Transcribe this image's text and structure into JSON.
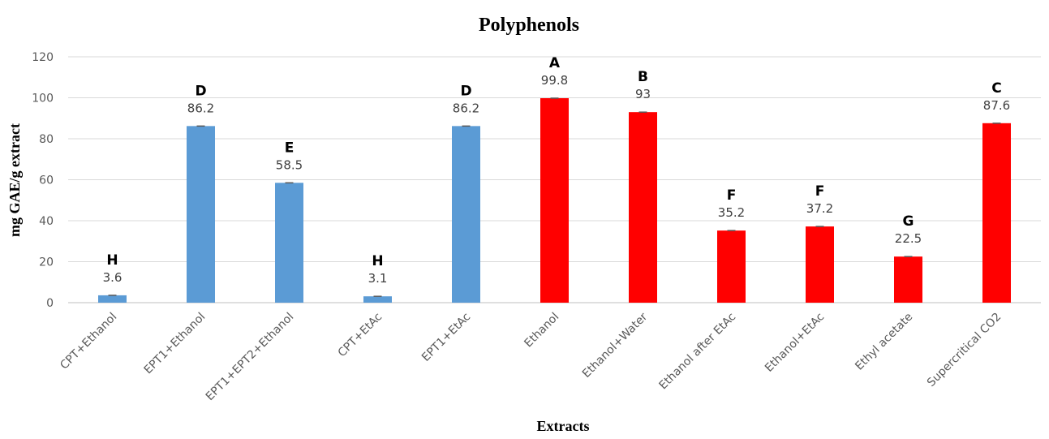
{
  "chart_data": {
    "type": "bar",
    "title": "Polyphenols",
    "xlabel": "Extracts",
    "ylabel": "mg GAE/g extract",
    "ylim": [
      0,
      120
    ],
    "yticks": [
      0,
      20,
      40,
      60,
      80,
      100,
      120
    ],
    "grid": true,
    "categories": [
      "CPT+Ethanol",
      "EPT1+Ethanol",
      "EPT1+EPT2+Ethanol",
      "CPT+EtAc",
      "EPT1+EtAc",
      "Ethanol",
      "Ethanol+Water",
      "Ethanol after EtAc",
      "Ethanol+EtAc",
      "Ethyl acetate",
      "Supercritical CO2"
    ],
    "values": [
      3.6,
      86.2,
      58.5,
      3.1,
      86.2,
      99.8,
      93,
      35.2,
      37.2,
      22.5,
      87.6
    ],
    "value_labels": [
      "3.6",
      "86.2",
      "58.5",
      "3.1",
      "86.2",
      "99.8",
      "93",
      "35.2",
      "37.2",
      "22.5",
      "87.6"
    ],
    "significance_letters": [
      "H",
      "D",
      "E",
      "H",
      "D",
      "A",
      "B",
      "F",
      "F",
      "G",
      "C"
    ],
    "bar_colors": [
      "#5b9bd5",
      "#5b9bd5",
      "#5b9bd5",
      "#5b9bd5",
      "#5b9bd5",
      "#ff0000",
      "#ff0000",
      "#ff0000",
      "#ff0000",
      "#ff0000",
      "#ff0000"
    ]
  }
}
